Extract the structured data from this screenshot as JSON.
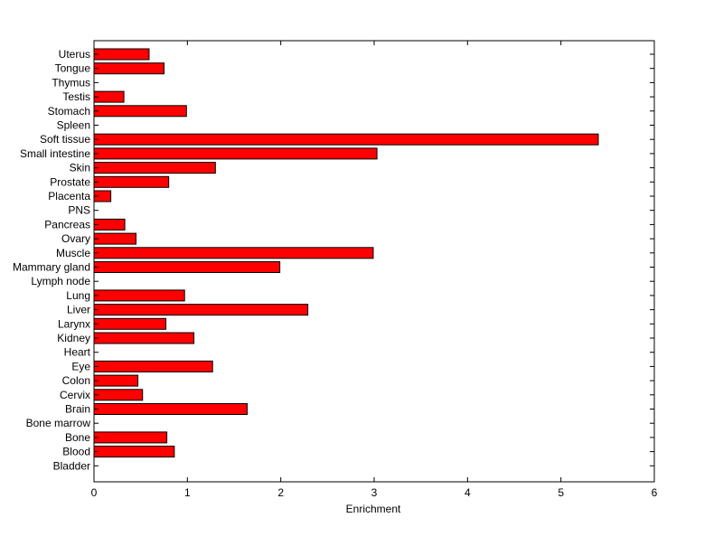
{
  "chart_data": {
    "type": "bar",
    "orientation": "horizontal",
    "categories": [
      "Uterus",
      "Tongue",
      "Thymus",
      "Testis",
      "Stomach",
      "Spleen",
      "Soft tissue",
      "Small intestine",
      "Skin",
      "Prostate",
      "Placenta",
      "PNS",
      "Pancreas",
      "Ovary",
      "Muscle",
      "Mammary gland",
      "Lymph node",
      "Lung",
      "Liver",
      "Larynx",
      "Kidney",
      "Heart",
      "Eye",
      "Colon",
      "Cervix",
      "Brain",
      "Bone marrow",
      "Bone",
      "Blood",
      "Bladder"
    ],
    "values": [
      0.59,
      0.75,
      0,
      0.32,
      0.99,
      0,
      5.4,
      3.03,
      1.3,
      0.8,
      0.18,
      0,
      0.33,
      0.45,
      2.99,
      1.99,
      0,
      0.97,
      2.29,
      0.77,
      1.07,
      0,
      1.27,
      0.47,
      0.52,
      1.64,
      0,
      0.78,
      0.86,
      0
    ],
    "xlabel": "Enrichment",
    "xlim": [
      0,
      6
    ],
    "xticks": [
      0,
      1,
      2,
      3,
      4,
      5,
      6
    ],
    "grid": false,
    "colors": {
      "bar_fill": "#ff0000",
      "bar_edge": "#000000",
      "axis": "#000000",
      "background": "#ffffff"
    }
  }
}
